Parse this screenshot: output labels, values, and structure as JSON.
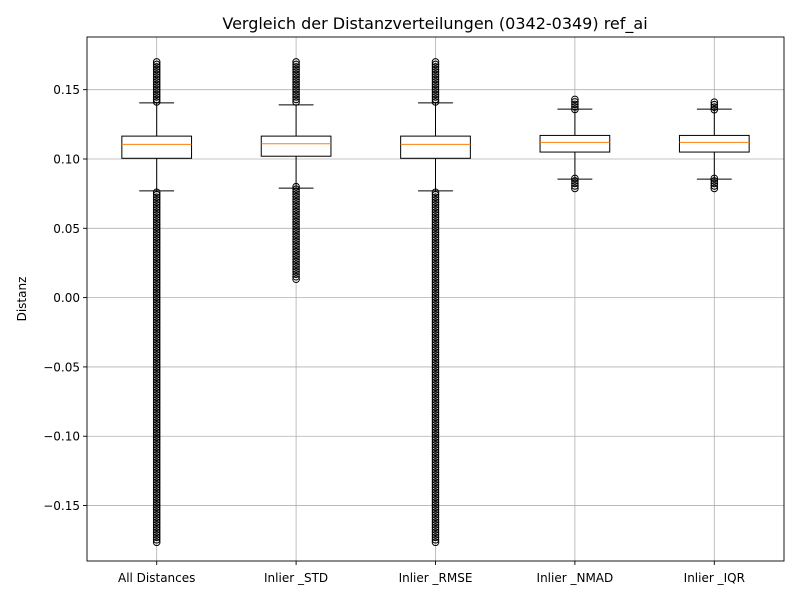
{
  "chart_data": {
    "type": "box",
    "title": "Vergleich der Distanzverteilungen (0342-0349) ref_ai",
    "xlabel": "",
    "ylabel": "Distanz",
    "ylim": [
      -0.19,
      0.188
    ],
    "yticks": [
      -0.15,
      -0.1,
      -0.05,
      0.0,
      0.05,
      0.1,
      0.15
    ],
    "ytick_labels": [
      "−0.15",
      "−0.10",
      "−0.05",
      "0.00",
      "0.05",
      "0.10",
      "0.15"
    ],
    "grid": true,
    "categories": [
      "All Distances",
      "Inlier _STD",
      "Inlier _RMSE",
      "Inlier _NMAD",
      "Inlier _IQR"
    ],
    "boxes": [
      {
        "whisker_low": 0.077,
        "q1": 0.1005,
        "median": 0.1105,
        "q3": 0.1165,
        "whisker_high": 0.1405,
        "outliers_low_range": [
          -0.177,
          0.076
        ],
        "outliers_high_range": [
          0.141,
          0.17
        ]
      },
      {
        "whisker_low": 0.079,
        "q1": 0.102,
        "median": 0.111,
        "q3": 0.1165,
        "whisker_high": 0.139,
        "outliers_low_range": [
          0.012,
          0.08
        ],
        "outliers_high_range": [
          0.14,
          0.17
        ]
      },
      {
        "whisker_low": 0.077,
        "q1": 0.1005,
        "median": 0.1105,
        "q3": 0.1165,
        "whisker_high": 0.1405,
        "outliers_low_range": [
          -0.177,
          0.076
        ],
        "outliers_high_range": [
          0.141,
          0.17
        ]
      },
      {
        "whisker_low": 0.0855,
        "q1": 0.105,
        "median": 0.112,
        "q3": 0.117,
        "whisker_high": 0.136,
        "outliers_low_range": [
          0.078,
          0.086
        ],
        "outliers_high_range": [
          0.135,
          0.143
        ]
      },
      {
        "whisker_low": 0.0855,
        "q1": 0.105,
        "median": 0.112,
        "q3": 0.117,
        "whisker_high": 0.136,
        "outliers_low_range": [
          0.077,
          0.086
        ],
        "outliers_high_range": [
          0.135,
          0.141
        ]
      }
    ],
    "colors": {
      "box": "#000000",
      "median": "#ff7f0e",
      "grid": "#b0b0b0",
      "outlier": "#000000"
    }
  }
}
